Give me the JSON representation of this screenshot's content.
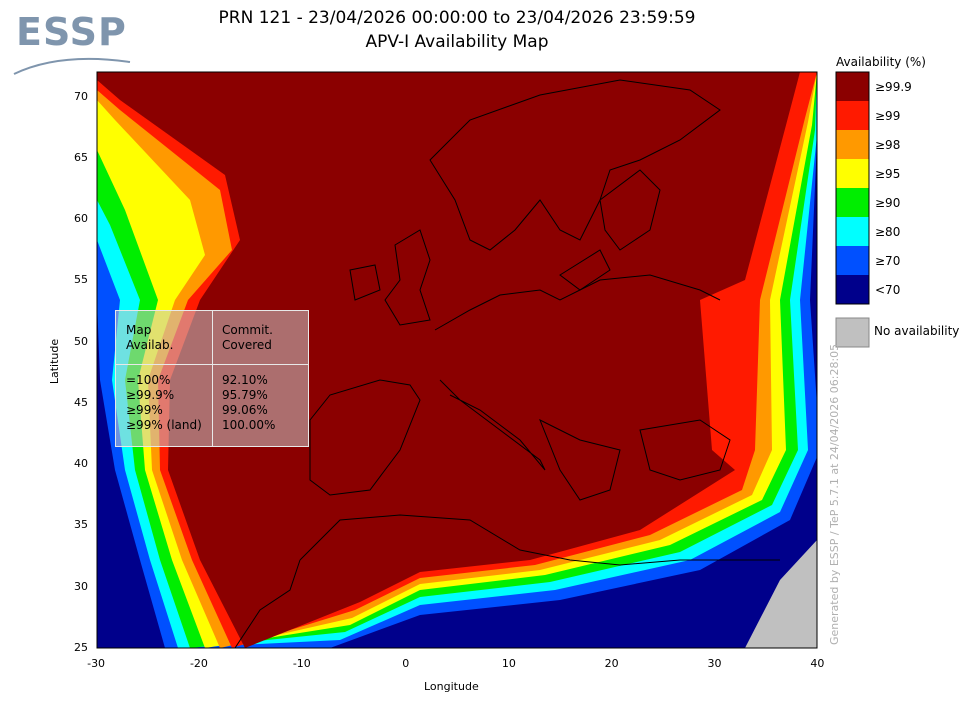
{
  "brand": {
    "logo_text": "ESSP"
  },
  "header": {
    "title_line1": "PRN 121 - 23/04/2026 00:00:00 to 23/04/2026 23:59:59",
    "title_line2": "APV-I Availability Map"
  },
  "axes": {
    "xlabel": "Longitude",
    "ylabel": "Latitude",
    "xticks": [
      "-30",
      "-20",
      "-10",
      "0",
      "10",
      "20",
      "30",
      "40"
    ],
    "yticks": [
      "25",
      "30",
      "35",
      "40",
      "45",
      "50",
      "55",
      "60",
      "65",
      "70"
    ],
    "xlim": [
      -30,
      40
    ],
    "ylim": [
      25,
      72
    ]
  },
  "legend": {
    "title": "Availability (%)",
    "items": [
      {
        "label": "≥99.9",
        "color": "#8b0000"
      },
      {
        "label": "≥99",
        "color": "#ff1a00"
      },
      {
        "label": "≥98",
        "color": "#ff9900"
      },
      {
        "label": "≥95",
        "color": "#ffff00"
      },
      {
        "label": "≥90",
        "color": "#00ee00"
      },
      {
        "label": "≥80",
        "color": "#00ffff"
      },
      {
        "label": "≥70",
        "color": "#0050ff"
      },
      {
        "label": "<70",
        "color": "#00008b"
      }
    ],
    "no_availability": {
      "label": "No availability",
      "color": "#c0c0c0"
    }
  },
  "stats_box": {
    "col1_header": [
      "Map",
      "Availab."
    ],
    "col2_header": [
      "Commit.",
      "Covered"
    ],
    "rows": [
      {
        "label": "=100%",
        "value": "92.10%"
      },
      {
        "label": "≥99.9%",
        "value": "95.79%"
      },
      {
        "label": "≥99%",
        "value": "99.06%"
      },
      {
        "label": "≥99% (land)",
        "value": "100.00%"
      }
    ]
  },
  "side_text": "Generated by ESSP / TeP 5.7.1 at 24/04/2026 06:28:05"
}
